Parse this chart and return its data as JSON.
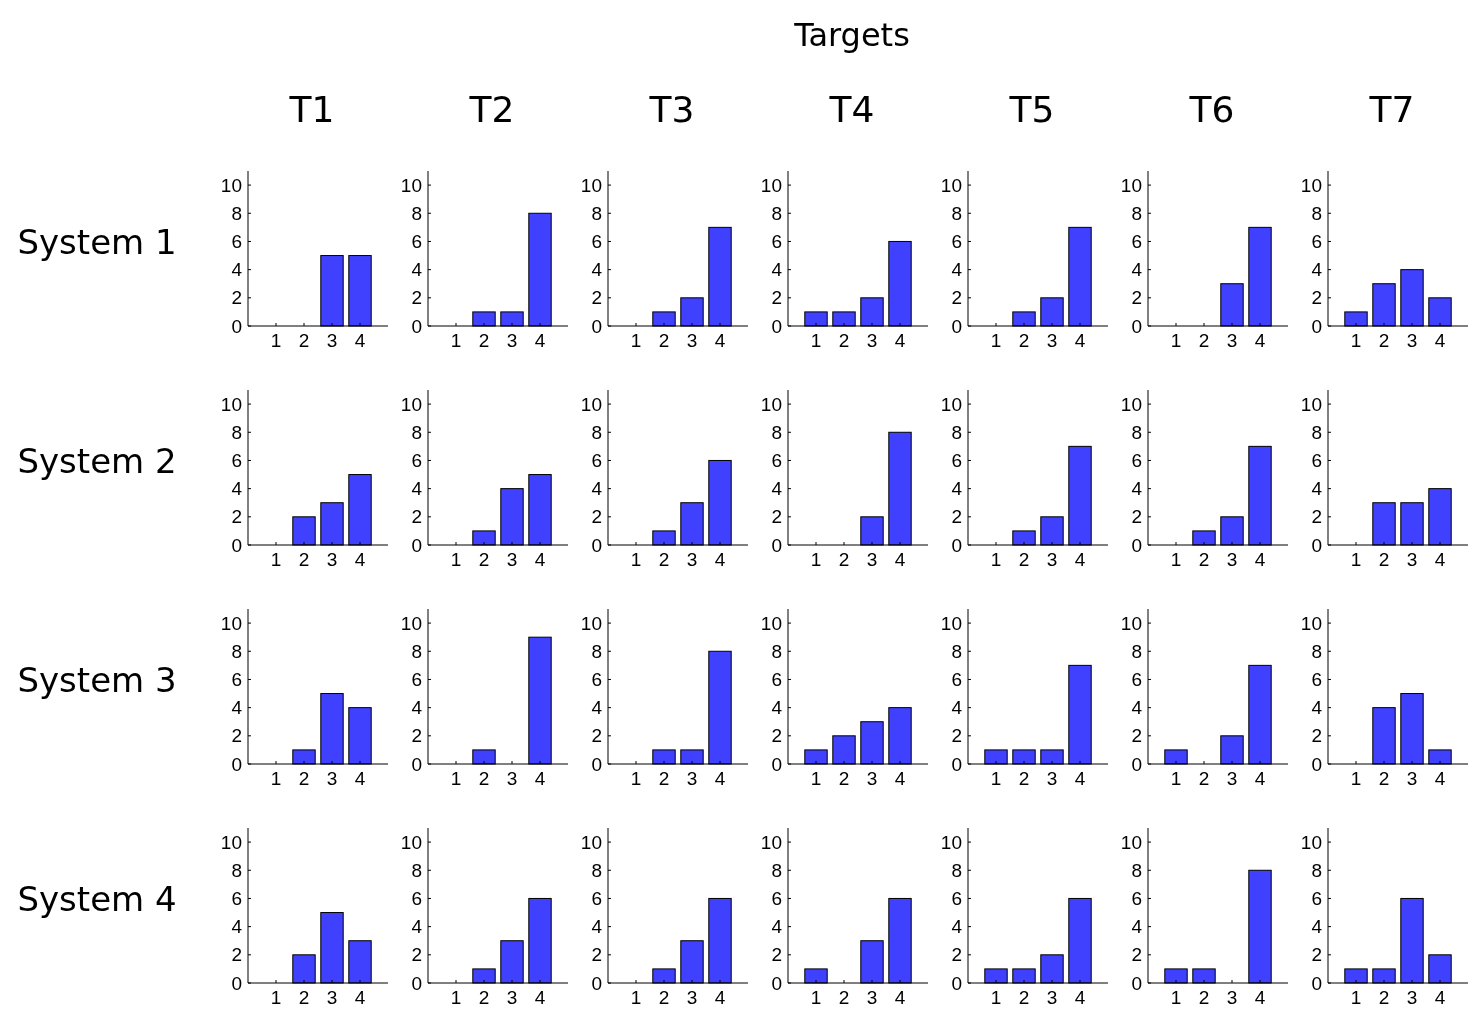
{
  "chart_data": [
    {
      "type": "bar",
      "title": "T1",
      "ylabel": "System 1",
      "x": [
        1,
        2,
        3,
        4
      ],
      "values": [
        0,
        0,
        5,
        5
      ],
      "color": "#4040ff",
      "xlim": [
        0,
        5
      ],
      "ylim": [
        0,
        11
      ],
      "xticks": [
        1,
        2,
        3,
        4
      ],
      "yticks": [
        0,
        2,
        4,
        6,
        8,
        10
      ]
    },
    {
      "type": "bar",
      "title": "T2",
      "x": [
        1,
        2,
        3,
        4
      ],
      "values": [
        0,
        1,
        1,
        8
      ],
      "color": "#4040ff",
      "xlim": [
        0,
        5
      ],
      "ylim": [
        0,
        11
      ],
      "xticks": [
        1,
        2,
        3,
        4
      ],
      "yticks": [
        0,
        2,
        4,
        6,
        8,
        10
      ]
    },
    {
      "type": "bar",
      "title": "T3",
      "x": [
        1,
        2,
        3,
        4
      ],
      "values": [
        0,
        1,
        2,
        7
      ],
      "color": "#4040ff",
      "xlim": [
        0,
        5
      ],
      "ylim": [
        0,
        11
      ],
      "xticks": [
        1,
        2,
        3,
        4
      ],
      "yticks": [
        0,
        2,
        4,
        6,
        8,
        10
      ]
    },
    {
      "type": "bar",
      "title": "T4",
      "annotations": [
        "Targets"
      ],
      "x": [
        1,
        2,
        3,
        4
      ],
      "values": [
        1,
        1,
        2,
        6
      ],
      "color": "#4040ff",
      "xlim": [
        0,
        5
      ],
      "ylim": [
        0,
        11
      ],
      "xticks": [
        1,
        2,
        3,
        4
      ],
      "yticks": [
        0,
        2,
        4,
        6,
        8,
        10
      ]
    },
    {
      "type": "bar",
      "title": "T5",
      "x": [
        1,
        2,
        3,
        4
      ],
      "values": [
        0,
        1,
        2,
        7
      ],
      "color": "#4040ff",
      "xlim": [
        0,
        5
      ],
      "ylim": [
        0,
        11
      ],
      "xticks": [
        1,
        2,
        3,
        4
      ],
      "yticks": [
        0,
        2,
        4,
        6,
        8,
        10
      ]
    },
    {
      "type": "bar",
      "title": "T6",
      "x": [
        1,
        2,
        3,
        4
      ],
      "values": [
        0,
        0,
        3,
        7
      ],
      "color": "#4040ff",
      "xlim": [
        0,
        5
      ],
      "ylim": [
        0,
        11
      ],
      "xticks": [
        1,
        2,
        3,
        4
      ],
      "yticks": [
        0,
        2,
        4,
        6,
        8,
        10
      ]
    },
    {
      "type": "bar",
      "title": "T7",
      "x": [
        1,
        2,
        3,
        4
      ],
      "values": [
        1,
        3,
        4,
        2
      ],
      "color": "#4040ff",
      "xlim": [
        0,
        5
      ],
      "ylim": [
        0,
        11
      ],
      "xticks": [
        1,
        2,
        3,
        4
      ],
      "yticks": [
        0,
        2,
        4,
        6,
        8,
        10
      ]
    },
    {
      "type": "bar",
      "ylabel": "System 2",
      "x": [
        1,
        2,
        3,
        4
      ],
      "values": [
        0,
        2,
        3,
        5
      ],
      "color": "#4040ff",
      "xlim": [
        0,
        5
      ],
      "ylim": [
        0,
        11
      ],
      "xticks": [
        1,
        2,
        3,
        4
      ],
      "yticks": [
        0,
        2,
        4,
        6,
        8,
        10
      ]
    },
    {
      "type": "bar",
      "x": [
        1,
        2,
        3,
        4
      ],
      "values": [
        0,
        1,
        4,
        5
      ],
      "color": "#4040ff",
      "xlim": [
        0,
        5
      ],
      "ylim": [
        0,
        11
      ],
      "xticks": [
        1,
        2,
        3,
        4
      ],
      "yticks": [
        0,
        2,
        4,
        6,
        8,
        10
      ]
    },
    {
      "type": "bar",
      "x": [
        1,
        2,
        3,
        4
      ],
      "values": [
        0,
        1,
        3,
        6
      ],
      "color": "#4040ff",
      "xlim": [
        0,
        5
      ],
      "ylim": [
        0,
        11
      ],
      "xticks": [
        1,
        2,
        3,
        4
      ],
      "yticks": [
        0,
        2,
        4,
        6,
        8,
        10
      ]
    },
    {
      "type": "bar",
      "x": [
        1,
        2,
        3,
        4
      ],
      "values": [
        0,
        0,
        2,
        8
      ],
      "color": "#4040ff",
      "xlim": [
        0,
        5
      ],
      "ylim": [
        0,
        11
      ],
      "xticks": [
        1,
        2,
        3,
        4
      ],
      "yticks": [
        0,
        2,
        4,
        6,
        8,
        10
      ]
    },
    {
      "type": "bar",
      "x": [
        1,
        2,
        3,
        4
      ],
      "values": [
        0,
        1,
        2,
        7
      ],
      "color": "#4040ff",
      "xlim": [
        0,
        5
      ],
      "ylim": [
        0,
        11
      ],
      "xticks": [
        1,
        2,
        3,
        4
      ],
      "yticks": [
        0,
        2,
        4,
        6,
        8,
        10
      ]
    },
    {
      "type": "bar",
      "x": [
        1,
        2,
        3,
        4
      ],
      "values": [
        0,
        1,
        2,
        7
      ],
      "color": "#4040ff",
      "xlim": [
        0,
        5
      ],
      "ylim": [
        0,
        11
      ],
      "xticks": [
        1,
        2,
        3,
        4
      ],
      "yticks": [
        0,
        2,
        4,
        6,
        8,
        10
      ]
    },
    {
      "type": "bar",
      "x": [
        1,
        2,
        3,
        4
      ],
      "values": [
        0,
        3,
        3,
        4
      ],
      "color": "#4040ff",
      "xlim": [
        0,
        5
      ],
      "ylim": [
        0,
        11
      ],
      "xticks": [
        1,
        2,
        3,
        4
      ],
      "yticks": [
        0,
        2,
        4,
        6,
        8,
        10
      ]
    },
    {
      "type": "bar",
      "ylabel": "System 3",
      "x": [
        1,
        2,
        3,
        4
      ],
      "values": [
        0,
        1,
        5,
        4
      ],
      "color": "#4040ff",
      "xlim": [
        0,
        5
      ],
      "ylim": [
        0,
        11
      ],
      "xticks": [
        1,
        2,
        3,
        4
      ],
      "yticks": [
        0,
        2,
        4,
        6,
        8,
        10
      ]
    },
    {
      "type": "bar",
      "x": [
        1,
        2,
        3,
        4
      ],
      "values": [
        0,
        1,
        0,
        9
      ],
      "color": "#4040ff",
      "xlim": [
        0,
        5
      ],
      "ylim": [
        0,
        11
      ],
      "xticks": [
        1,
        2,
        3,
        4
      ],
      "yticks": [
        0,
        2,
        4,
        6,
        8,
        10
      ]
    },
    {
      "type": "bar",
      "x": [
        1,
        2,
        3,
        4
      ],
      "values": [
        0,
        1,
        1,
        8
      ],
      "color": "#4040ff",
      "xlim": [
        0,
        5
      ],
      "ylim": [
        0,
        11
      ],
      "xticks": [
        1,
        2,
        3,
        4
      ],
      "yticks": [
        0,
        2,
        4,
        6,
        8,
        10
      ]
    },
    {
      "type": "bar",
      "x": [
        1,
        2,
        3,
        4
      ],
      "values": [
        1,
        2,
        3,
        4
      ],
      "color": "#4040ff",
      "xlim": [
        0,
        5
      ],
      "ylim": [
        0,
        11
      ],
      "xticks": [
        1,
        2,
        3,
        4
      ],
      "yticks": [
        0,
        2,
        4,
        6,
        8,
        10
      ]
    },
    {
      "type": "bar",
      "x": [
        1,
        2,
        3,
        4
      ],
      "values": [
        1,
        1,
        1,
        7
      ],
      "color": "#4040ff",
      "xlim": [
        0,
        5
      ],
      "ylim": [
        0,
        11
      ],
      "xticks": [
        1,
        2,
        3,
        4
      ],
      "yticks": [
        0,
        2,
        4,
        6,
        8,
        10
      ]
    },
    {
      "type": "bar",
      "x": [
        1,
        2,
        3,
        4
      ],
      "values": [
        1,
        0,
        2,
        7
      ],
      "color": "#4040ff",
      "xlim": [
        0,
        5
      ],
      "ylim": [
        0,
        11
      ],
      "xticks": [
        1,
        2,
        3,
        4
      ],
      "yticks": [
        0,
        2,
        4,
        6,
        8,
        10
      ]
    },
    {
      "type": "bar",
      "x": [
        1,
        2,
        3,
        4
      ],
      "values": [
        0,
        4,
        5,
        1
      ],
      "color": "#4040ff",
      "xlim": [
        0,
        5
      ],
      "ylim": [
        0,
        11
      ],
      "xticks": [
        1,
        2,
        3,
        4
      ],
      "yticks": [
        0,
        2,
        4,
        6,
        8,
        10
      ]
    },
    {
      "type": "bar",
      "ylabel": "System 4",
      "x": [
        1,
        2,
        3,
        4
      ],
      "values": [
        0,
        2,
        5,
        3
      ],
      "color": "#4040ff",
      "xlim": [
        0,
        5
      ],
      "ylim": [
        0,
        11
      ],
      "xticks": [
        1,
        2,
        3,
        4
      ],
      "yticks": [
        0,
        2,
        4,
        6,
        8,
        10
      ]
    },
    {
      "type": "bar",
      "x": [
        1,
        2,
        3,
        4
      ],
      "values": [
        0,
        1,
        3,
        6
      ],
      "color": "#4040ff",
      "xlim": [
        0,
        5
      ],
      "ylim": [
        0,
        11
      ],
      "xticks": [
        1,
        2,
        3,
        4
      ],
      "yticks": [
        0,
        2,
        4,
        6,
        8,
        10
      ]
    },
    {
      "type": "bar",
      "x": [
        1,
        2,
        3,
        4
      ],
      "values": [
        0,
        1,
        3,
        6
      ],
      "color": "#4040ff",
      "xlim": [
        0,
        5
      ],
      "ylim": [
        0,
        11
      ],
      "xticks": [
        1,
        2,
        3,
        4
      ],
      "yticks": [
        0,
        2,
        4,
        6,
        8,
        10
      ]
    },
    {
      "type": "bar",
      "x": [
        1,
        2,
        3,
        4
      ],
      "values": [
        1,
        0,
        3,
        6
      ],
      "color": "#4040ff",
      "xlim": [
        0,
        5
      ],
      "ylim": [
        0,
        11
      ],
      "xticks": [
        1,
        2,
        3,
        4
      ],
      "yticks": [
        0,
        2,
        4,
        6,
        8,
        10
      ]
    },
    {
      "type": "bar",
      "x": [
        1,
        2,
        3,
        4
      ],
      "values": [
        1,
        1,
        2,
        6
      ],
      "color": "#4040ff",
      "xlim": [
        0,
        5
      ],
      "ylim": [
        0,
        11
      ],
      "xticks": [
        1,
        2,
        3,
        4
      ],
      "yticks": [
        0,
        2,
        4,
        6,
        8,
        10
      ]
    },
    {
      "type": "bar",
      "x": [
        1,
        2,
        3,
        4
      ],
      "values": [
        1,
        1,
        0,
        8
      ],
      "color": "#4040ff",
      "xlim": [
        0,
        5
      ],
      "ylim": [
        0,
        11
      ],
      "xticks": [
        1,
        2,
        3,
        4
      ],
      "yticks": [
        0,
        2,
        4,
        6,
        8,
        10
      ]
    },
    {
      "type": "bar",
      "x": [
        1,
        2,
        3,
        4
      ],
      "values": [
        1,
        1,
        6,
        2
      ],
      "color": "#4040ff",
      "xlim": [
        0,
        5
      ],
      "ylim": [
        0,
        11
      ],
      "xticks": [
        1,
        2,
        3,
        4
      ],
      "yticks": [
        0,
        2,
        4,
        6,
        8,
        10
      ]
    }
  ]
}
